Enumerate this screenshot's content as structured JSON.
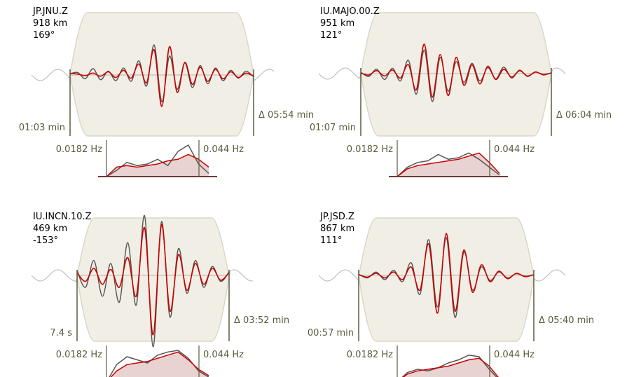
{
  "colors": {
    "envelope_fill": "#f1efe5",
    "envelope_stroke": "#d9d7c8",
    "taper_trace": "#b4b4b4",
    "observed_trace": "#555555",
    "synthetic_trace": "#cc0000",
    "marker_line": "#5a5a3c",
    "spectrum_fill": "#e8d2d2",
    "spectrum_base": "#6b3a3a"
  },
  "chart_data": [
    {
      "type": "line",
      "station": "JP.JNU.Z",
      "distance": "918 km",
      "azimuth": "169°",
      "window_start_label": "01:03 min",
      "window_length_label": "Δ 05:54 min",
      "freq_low_label": "0.0182 Hz",
      "freq_high_label": "0.044 Hz",
      "series": [
        {
          "values": [
            0.05,
            0.03,
            -0.02,
            0.06,
            -0.04,
            0.1,
            -0.08,
            0.15,
            -0.1,
            0.35,
            -0.25,
            0.8,
            -1.0,
            0.9,
            -0.55,
            0.4,
            -0.3,
            0.25,
            -0.2,
            0.18,
            -0.12,
            0.1,
            -0.08,
            0.06,
            -0.04
          ]
        },
        {
          "values": [
            0.04,
            0.08,
            -0.12,
            0.2,
            -0.15,
            0.12,
            -0.18,
            0.22,
            -0.2,
            0.45,
            -0.35,
            0.95,
            -0.85,
            0.6,
            -0.45,
            0.38,
            -0.4,
            0.3,
            -0.28,
            0.22,
            -0.18,
            0.15,
            -0.1,
            0.12,
            -0.06
          ]
        }
      ],
      "spectrum": {
        "series": [
          {
            "values": [
              0.0,
              0.3,
              0.35,
              0.3,
              0.35,
              0.4,
              0.5,
              0.55,
              0.7,
              0.55,
              0.3
            ]
          },
          {
            "values": [
              0.0,
              0.2,
              0.45,
              0.35,
              0.4,
              0.55,
              0.35,
              0.8,
              1.0,
              0.4,
              0.1
            ]
          }
        ]
      }
    },
    {
      "type": "line",
      "station": "IU.MAJO.00.Z",
      "distance": "951 km",
      "azimuth": "121°",
      "window_start_label": "01:07 min",
      "window_length_label": "Δ 06:04 min",
      "freq_low_label": "0.0182 Hz",
      "freq_high_label": "0.044 Hz",
      "series": [
        {
          "values": [
            0.02,
            -0.05,
            0.1,
            -0.08,
            0.12,
            -0.15,
            0.3,
            -0.55,
            1.0,
            -0.8,
            0.65,
            -0.75,
            0.55,
            -0.4,
            0.3,
            -0.35,
            0.25,
            -0.2,
            0.15,
            -0.12,
            0.1,
            -0.08,
            0.05,
            -0.03,
            0.02
          ]
        },
        {
          "values": [
            0.05,
            -0.1,
            0.15,
            -0.2,
            0.18,
            -0.25,
            0.45,
            -0.7,
            0.8,
            -0.95,
            0.55,
            -0.6,
            0.4,
            -0.3,
            0.35,
            -0.25,
            0.2,
            -0.18,
            0.22,
            -0.15,
            0.12,
            -0.1,
            0.06,
            -0.05,
            0.03
          ]
        }
      ],
      "spectrum": {
        "series": [
          {
            "values": [
              0.0,
              0.25,
              0.35,
              0.4,
              0.45,
              0.5,
              0.55,
              0.65,
              0.75,
              0.45,
              0.1
            ]
          },
          {
            "values": [
              0.0,
              0.3,
              0.45,
              0.5,
              0.7,
              0.55,
              0.6,
              0.75,
              0.55,
              0.3,
              0.05
            ]
          }
        ]
      }
    },
    {
      "type": "line",
      "station": "IU.INCN.10.Z",
      "distance": "469 km",
      "azimuth": "-153°",
      "window_start_label": "7.4 s",
      "window_length_label": "Δ 03:52 min",
      "freq_low_label": "0.0182 Hz",
      "freq_high_label": "0.044 Hz",
      "series": [
        {
          "values": [
            0.05,
            -0.1,
            0.12,
            -0.15,
            0.1,
            -0.2,
            0.3,
            -0.35,
            0.8,
            -1.0,
            0.85,
            -0.6,
            0.35,
            -0.25,
            0.2,
            -0.15,
            0.12,
            -0.08,
            0.05
          ]
        },
        {
          "values": [
            0.08,
            -0.2,
            0.25,
            -0.35,
            0.2,
            -0.45,
            0.55,
            -0.5,
            1.0,
            -1.2,
            0.9,
            -0.7,
            0.45,
            -0.3,
            0.25,
            -0.2,
            0.15,
            -0.1,
            0.06
          ]
        }
      ],
      "spectrum": {
        "series": [
          {
            "values": [
              0.0,
              0.35,
              0.55,
              0.6,
              0.65,
              0.75,
              0.85,
              0.95,
              0.7,
              0.4,
              0.2
            ]
          },
          {
            "values": [
              0.0,
              0.55,
              0.8,
              0.7,
              0.6,
              0.85,
              0.95,
              1.0,
              0.75,
              0.35,
              0.15
            ]
          }
        ]
      }
    },
    {
      "type": "line",
      "station": "JP.JSD.Z",
      "distance": "867 km",
      "azimuth": "111°",
      "window_start_label": "00:57 min",
      "window_length_label": "Δ 05:40 min",
      "freq_low_label": "0.0182 Hz",
      "freq_high_label": "0.044 Hz",
      "series": [
        {
          "values": [
            0.02,
            -0.04,
            0.05,
            -0.06,
            0.08,
            -0.1,
            0.2,
            -0.35,
            0.75,
            -0.9,
            1.0,
            -0.85,
            0.6,
            -0.4,
            0.25,
            -0.15,
            0.1,
            -0.08,
            0.05,
            -0.03,
            0.02
          ]
        },
        {
          "values": [
            0.03,
            -0.06,
            0.08,
            -0.1,
            0.12,
            -0.15,
            0.3,
            -0.45,
            0.85,
            -0.75,
            0.9,
            -1.0,
            0.55,
            -0.35,
            0.2,
            -0.12,
            0.08,
            -0.06,
            0.04,
            -0.02,
            0.01
          ]
        }
      ],
      "spectrum": {
        "series": [
          {
            "values": [
              0.0,
              0.25,
              0.35,
              0.4,
              0.45,
              0.5,
              0.6,
              0.7,
              0.75,
              0.5,
              0.1
            ]
          },
          {
            "values": [
              0.0,
              0.3,
              0.4,
              0.35,
              0.45,
              0.6,
              0.7,
              0.85,
              0.8,
              0.4,
              0.05
            ]
          }
        ]
      }
    }
  ]
}
